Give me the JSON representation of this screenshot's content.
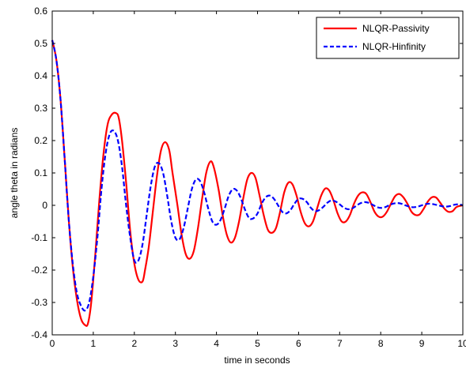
{
  "chart_data": {
    "type": "line",
    "title": "",
    "xlabel": "time in seconds",
    "ylabel": "angle theta in radians",
    "xlim": [
      0,
      10
    ],
    "ylim": [
      -0.4,
      0.6
    ],
    "xticks": [
      0,
      1,
      2,
      3,
      4,
      5,
      6,
      7,
      8,
      9,
      10
    ],
    "xtick_labels": [
      "0",
      "1",
      "2",
      "3",
      "4",
      "5",
      "6",
      "7",
      "8",
      "9",
      "10"
    ],
    "yticks": [
      -0.4,
      -0.3,
      -0.2,
      -0.1,
      0,
      0.1,
      0.2,
      0.3,
      0.4,
      0.5,
      0.6
    ],
    "ytick_labels": [
      "-0.4",
      "-0.3",
      "-0.2",
      "-0.1",
      "0",
      "0.1",
      "0.2",
      "0.3",
      "0.4",
      "0.5",
      "0.6"
    ],
    "grid": false,
    "legend": "top-right",
    "series": [
      {
        "name": "NLQR-Passivity",
        "color": "#ff0000",
        "style": "solid",
        "x": [
          0,
          0.1,
          0.2,
          0.3,
          0.4,
          0.5,
          0.6,
          0.7,
          0.8,
          0.87,
          0.95,
          1.05,
          1.15,
          1.25,
          1.35,
          1.45,
          1.55,
          1.62,
          1.7,
          1.8,
          1.9,
          2.0,
          2.1,
          2.2,
          2.26,
          2.35,
          2.45,
          2.55,
          2.65,
          2.75,
          2.85,
          2.93,
          3.05,
          3.15,
          3.25,
          3.35,
          3.45,
          3.55,
          3.65,
          3.75,
          3.85,
          3.93,
          4.05,
          4.15,
          4.25,
          4.35,
          4.45,
          4.55,
          4.65,
          4.75,
          4.85,
          4.95,
          5.05,
          5.15,
          5.25,
          5.35,
          5.45,
          5.55,
          5.65,
          5.75,
          5.85,
          5.95,
          6.05,
          6.15,
          6.25,
          6.35,
          6.45,
          6.55,
          6.65,
          6.75,
          6.85,
          6.95,
          7.05,
          7.15,
          7.25,
          7.35,
          7.45,
          7.55,
          7.65,
          7.75,
          7.85,
          7.95,
          8.05,
          8.15,
          8.25,
          8.35,
          8.45,
          8.55,
          8.65,
          8.75,
          8.85,
          8.95,
          9.05,
          9.15,
          9.25,
          9.35,
          9.45,
          9.55,
          9.65,
          9.75,
          9.85,
          10.0
        ],
        "y": [
          0.51,
          0.45,
          0.33,
          0.15,
          -0.04,
          -0.19,
          -0.29,
          -0.35,
          -0.37,
          -0.365,
          -0.3,
          -0.15,
          0.02,
          0.16,
          0.25,
          0.28,
          0.285,
          0.27,
          0.2,
          0.07,
          -0.08,
          -0.18,
          -0.23,
          -0.235,
          -0.2,
          -0.13,
          -0.02,
          0.09,
          0.17,
          0.195,
          0.17,
          0.1,
          0.0,
          -0.09,
          -0.15,
          -0.165,
          -0.14,
          -0.07,
          0.02,
          0.1,
          0.135,
          0.12,
          0.05,
          -0.03,
          -0.09,
          -0.115,
          -0.1,
          -0.05,
          0.02,
          0.08,
          0.1,
          0.085,
          0.03,
          -0.03,
          -0.075,
          -0.085,
          -0.07,
          -0.02,
          0.04,
          0.07,
          0.065,
          0.03,
          -0.02,
          -0.055,
          -0.065,
          -0.05,
          -0.01,
          0.03,
          0.052,
          0.045,
          0.015,
          -0.025,
          -0.05,
          -0.05,
          -0.03,
          0.005,
          0.03,
          0.04,
          0.035,
          0.01,
          -0.02,
          -0.035,
          -0.035,
          -0.02,
          0.005,
          0.028,
          0.035,
          0.025,
          0.005,
          -0.02,
          -0.03,
          -0.028,
          -0.01,
          0.012,
          0.025,
          0.024,
          0.008,
          -0.01,
          -0.02,
          -0.018,
          -0.005,
          0.0
        ]
      },
      {
        "name": "NLQR-Hinfinity",
        "color": "#0000ff",
        "style": "dashed",
        "x": [
          0,
          0.1,
          0.2,
          0.3,
          0.4,
          0.5,
          0.6,
          0.7,
          0.8,
          0.9,
          1.0,
          1.1,
          1.2,
          1.3,
          1.4,
          1.5,
          1.6,
          1.7,
          1.8,
          1.9,
          2.0,
          2.1,
          2.2,
          2.3,
          2.4,
          2.5,
          2.6,
          2.7,
          2.8,
          2.9,
          3.0,
          3.1,
          3.2,
          3.3,
          3.4,
          3.5,
          3.6,
          3.7,
          3.8,
          3.9,
          4.0,
          4.1,
          4.2,
          4.3,
          4.4,
          4.5,
          4.6,
          4.7,
          4.8,
          4.9,
          5.0,
          5.1,
          5.2,
          5.3,
          5.4,
          5.5,
          5.6,
          5.7,
          5.8,
          5.9,
          6.0,
          6.1,
          6.2,
          6.3,
          6.4,
          6.5,
          6.6,
          6.7,
          6.8,
          6.9,
          7.0,
          7.1,
          7.2,
          7.3,
          7.4,
          7.5,
          7.6,
          7.7,
          7.8,
          7.9,
          8.0,
          8.1,
          8.2,
          8.3,
          8.4,
          8.5,
          8.6,
          8.7,
          8.8,
          8.9,
          9.0,
          9.1,
          9.2,
          9.3,
          9.4,
          9.5,
          9.6,
          9.7,
          9.8,
          9.9,
          10.0
        ],
        "y": [
          0.51,
          0.45,
          0.33,
          0.15,
          -0.04,
          -0.18,
          -0.27,
          -0.31,
          -0.325,
          -0.3,
          -0.22,
          -0.1,
          0.05,
          0.16,
          0.22,
          0.23,
          0.2,
          0.12,
          0.0,
          -0.1,
          -0.17,
          -0.17,
          -0.12,
          -0.03,
          0.06,
          0.12,
          0.13,
          0.1,
          0.03,
          -0.05,
          -0.1,
          -0.105,
          -0.07,
          -0.01,
          0.05,
          0.08,
          0.075,
          0.04,
          -0.01,
          -0.05,
          -0.06,
          -0.045,
          -0.01,
          0.03,
          0.05,
          0.045,
          0.02,
          -0.015,
          -0.04,
          -0.04,
          -0.025,
          0.005,
          0.025,
          0.03,
          0.02,
          0.0,
          -0.02,
          -0.025,
          -0.015,
          0.005,
          0.02,
          0.02,
          0.01,
          -0.008,
          -0.018,
          -0.015,
          -0.005,
          0.008,
          0.015,
          0.012,
          0.003,
          -0.007,
          -0.012,
          -0.01,
          -0.002,
          0.006,
          0.01,
          0.008,
          0.002,
          -0.005,
          -0.008,
          -0.006,
          0.0,
          0.005,
          0.007,
          0.005,
          0.0,
          -0.004,
          -0.006,
          -0.004,
          0.0,
          0.004,
          0.005,
          0.003,
          0.0,
          -0.003,
          -0.004,
          -0.002,
          0.002,
          0.003,
          0.0
        ]
      }
    ]
  }
}
